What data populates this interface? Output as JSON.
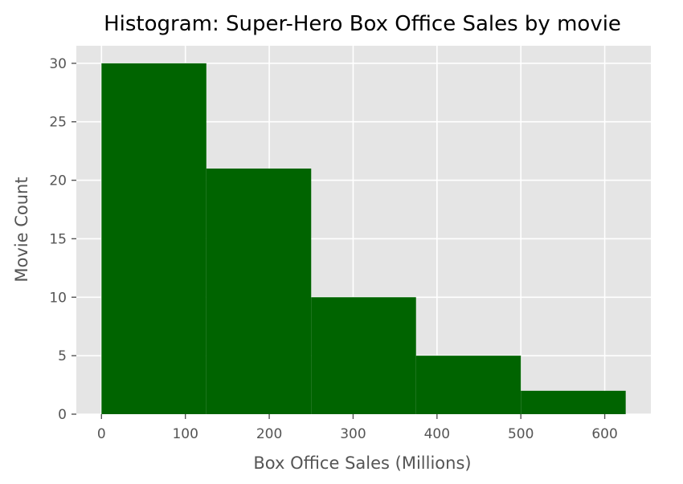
{
  "chart_data": {
    "type": "bar",
    "title": "Histogram: Super-Hero Box Office Sales by movie",
    "xlabel": "Box Office Sales (Millions)",
    "ylabel": "Movie Count",
    "bins": [
      {
        "start": 0,
        "end": 125,
        "count": 30
      },
      {
        "start": 125,
        "end": 250,
        "count": 21
      },
      {
        "start": 250,
        "end": 375,
        "count": 10
      },
      {
        "start": 375,
        "end": 500,
        "count": 5
      },
      {
        "start": 500,
        "end": 625,
        "count": 2
      }
    ],
    "xlim": [
      -30,
      655
    ],
    "ylim": [
      0,
      31.5
    ],
    "xticks": [
      0,
      100,
      200,
      300,
      400,
      500,
      600
    ],
    "yticks": [
      0,
      5,
      10,
      15,
      20,
      25,
      30
    ],
    "grid": true,
    "legend": "none",
    "colors": {
      "bar": "#006400",
      "plot_background": "#e5e5e5",
      "grid": "#ffffff",
      "tick_text": "#555555",
      "title_text": "#000000"
    }
  }
}
